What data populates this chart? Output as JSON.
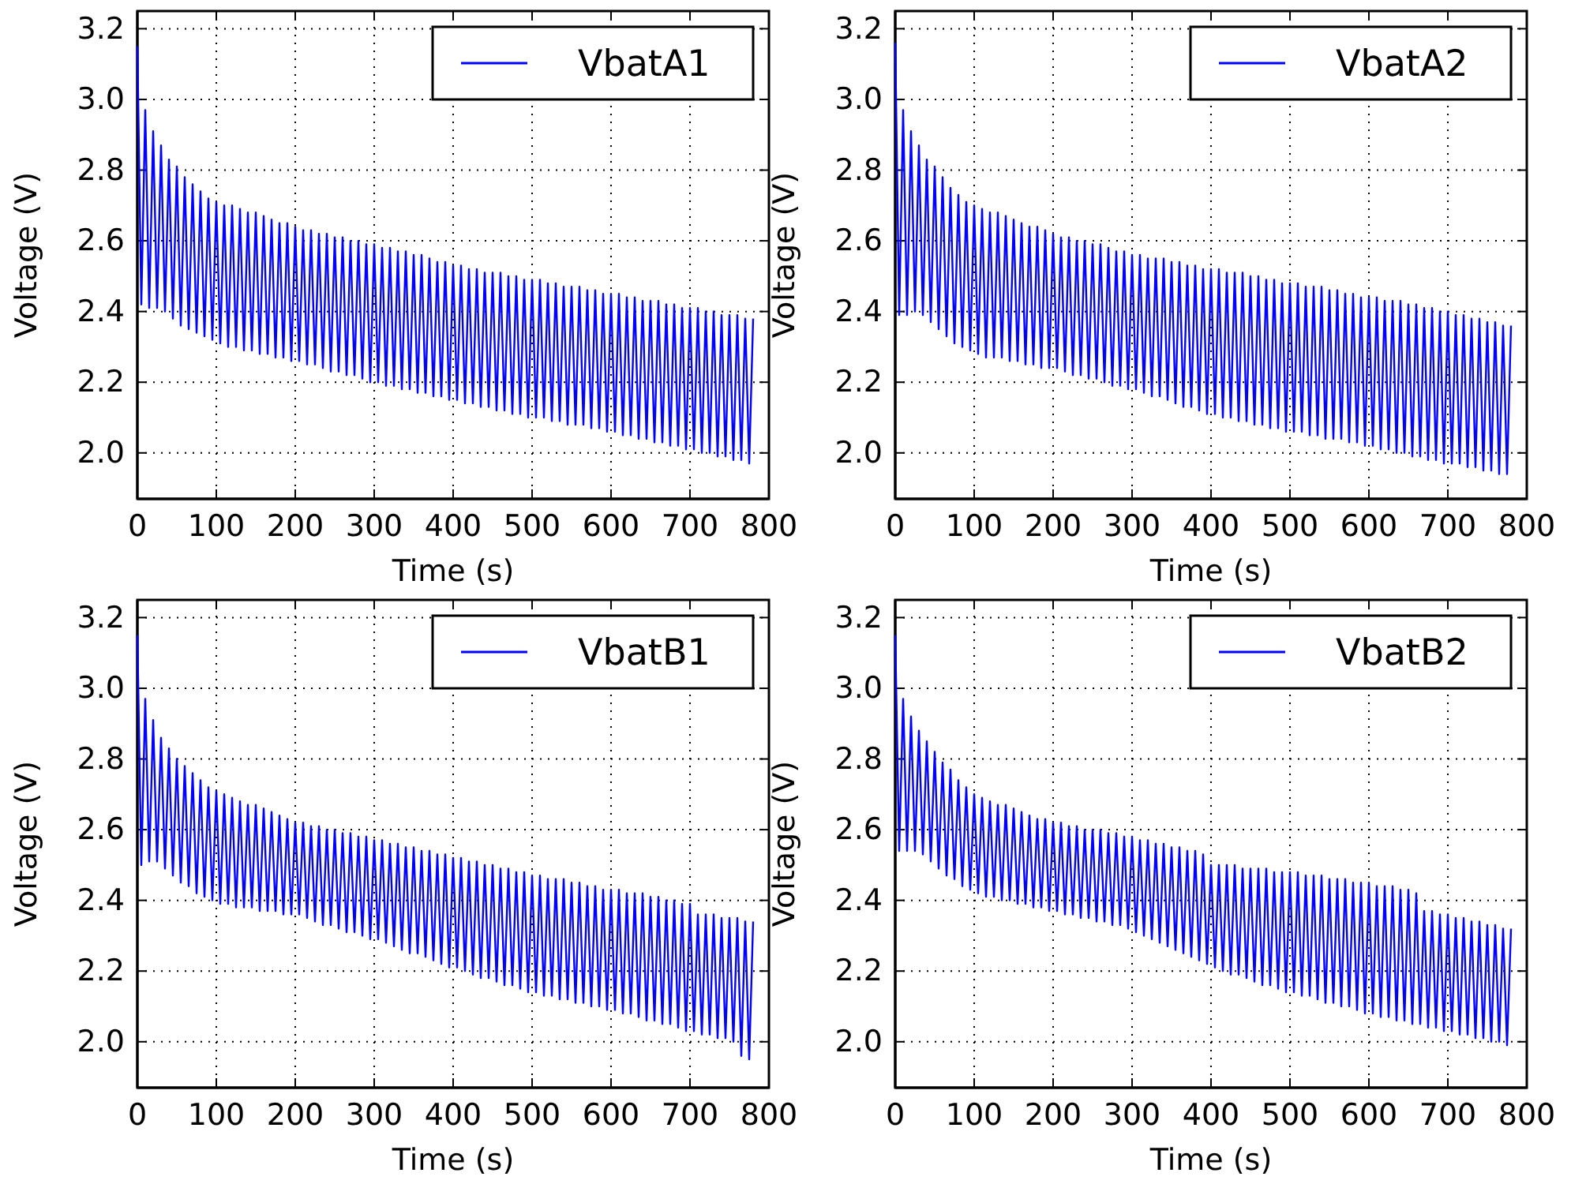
{
  "chart_data": [
    {
      "type": "line",
      "xlabel": "Time (s)",
      "ylabel": "Voltage (V)",
      "xlim": [
        0,
        800
      ],
      "ylim": [
        1.87,
        3.25
      ],
      "xticks": [
        0,
        100,
        200,
        300,
        400,
        500,
        600,
        700,
        800
      ],
      "yticks": [
        {
          "value": 2.0,
          "label": "2.0"
        },
        {
          "value": 2.2,
          "label": "2.2"
        },
        {
          "value": 2.4,
          "label": "2.4"
        },
        {
          "value": 2.6,
          "label": "2.6"
        },
        {
          "value": 2.8,
          "label": "2.8"
        },
        {
          "value": 3.0,
          "label": "3.0"
        },
        {
          "value": 3.2,
          "label": "3.2"
        }
      ],
      "grid": true,
      "legend": "top right",
      "line_style": "solid",
      "marker": "none",
      "x": [
        0,
        5,
        10,
        15,
        20,
        25,
        30,
        35,
        40,
        45,
        50,
        55,
        60,
        65,
        70,
        75,
        80,
        85,
        90,
        95,
        100,
        105,
        110,
        115,
        120,
        125,
        130,
        135,
        140,
        145,
        150,
        155,
        160,
        165,
        170,
        175,
        180,
        185,
        190,
        195,
        200,
        205,
        210,
        215,
        220,
        225,
        230,
        235,
        240,
        245,
        250,
        255,
        260,
        265,
        270,
        275,
        280,
        285,
        290,
        295,
        300,
        305,
        310,
        315,
        320,
        325,
        330,
        335,
        340,
        345,
        350,
        355,
        360,
        365,
        370,
        375,
        380,
        385,
        390,
        395,
        400,
        405,
        410,
        415,
        420,
        425,
        430,
        435,
        440,
        445,
        450,
        455,
        460,
        465,
        470,
        475,
        480,
        485,
        490,
        495,
        500,
        505,
        510,
        515,
        520,
        525,
        530,
        535,
        540,
        545,
        550,
        555,
        560,
        565,
        570,
        575,
        580,
        585,
        590,
        595,
        600,
        605,
        610,
        615,
        620,
        625,
        630,
        635,
        640,
        645,
        650,
        655,
        660,
        665,
        670,
        675,
        680,
        685,
        690,
        695,
        700,
        705,
        710,
        715,
        720,
        725,
        730,
        735,
        740,
        745,
        750,
        755,
        760,
        765,
        770,
        775,
        780
      ],
      "series": [
        {
          "name": "VbatA1",
          "color": "#0000ff",
          "values": [
            3.15,
            2.42,
            2.97,
            2.41,
            2.91,
            2.41,
            2.87,
            2.4,
            2.83,
            2.38,
            2.81,
            2.36,
            2.78,
            2.35,
            2.76,
            2.34,
            2.74,
            2.33,
            2.72,
            2.32,
            2.71,
            2.31,
            2.7,
            2.3,
            2.7,
            2.3,
            2.69,
            2.29,
            2.68,
            2.29,
            2.68,
            2.28,
            2.67,
            2.28,
            2.66,
            2.27,
            2.65,
            2.27,
            2.65,
            2.26,
            2.64,
            2.26,
            2.63,
            2.25,
            2.63,
            2.25,
            2.62,
            2.24,
            2.62,
            2.23,
            2.61,
            2.23,
            2.61,
            2.22,
            2.6,
            2.22,
            2.6,
            2.21,
            2.59,
            2.2,
            2.59,
            2.2,
            2.58,
            2.19,
            2.58,
            2.19,
            2.57,
            2.18,
            2.57,
            2.18,
            2.56,
            2.17,
            2.56,
            2.17,
            2.55,
            2.16,
            2.54,
            2.16,
            2.54,
            2.15,
            2.53,
            2.15,
            2.53,
            2.14,
            2.52,
            2.14,
            2.52,
            2.13,
            2.51,
            2.13,
            2.51,
            2.12,
            2.51,
            2.12,
            2.5,
            2.11,
            2.5,
            2.11,
            2.49,
            2.1,
            2.49,
            2.1,
            2.49,
            2.1,
            2.48,
            2.09,
            2.48,
            2.09,
            2.47,
            2.08,
            2.47,
            2.08,
            2.47,
            2.08,
            2.46,
            2.07,
            2.46,
            2.07,
            2.45,
            2.06,
            2.45,
            2.06,
            2.45,
            2.05,
            2.44,
            2.05,
            2.44,
            2.04,
            2.43,
            2.04,
            2.43,
            2.03,
            2.43,
            2.03,
            2.42,
            2.02,
            2.42,
            2.02,
            2.41,
            2.01,
            2.41,
            2.01,
            2.41,
            2.0,
            2.4,
            2.0,
            2.4,
            1.99,
            2.39,
            1.99,
            2.39,
            1.98,
            2.39,
            1.98,
            2.38,
            1.97,
            2.38
          ]
        }
      ]
    },
    {
      "type": "line",
      "xlabel": "Time (s)",
      "ylabel": "Voltage (V)",
      "xlim": [
        0,
        800
      ],
      "ylim": [
        1.87,
        3.25
      ],
      "xticks": [
        0,
        100,
        200,
        300,
        400,
        500,
        600,
        700,
        800
      ],
      "yticks": [
        {
          "value": 2.0,
          "label": "2.0"
        },
        {
          "value": 2.2,
          "label": "2.2"
        },
        {
          "value": 2.4,
          "label": "2.4"
        },
        {
          "value": 2.6,
          "label": "2.6"
        },
        {
          "value": 2.8,
          "label": "2.8"
        },
        {
          "value": 3.0,
          "label": "3.0"
        },
        {
          "value": 3.2,
          "label": "3.2"
        }
      ],
      "grid": true,
      "legend": "top right",
      "line_style": "solid",
      "marker": "none",
      "x": [
        0,
        5,
        10,
        15,
        20,
        25,
        30,
        35,
        40,
        45,
        50,
        55,
        60,
        65,
        70,
        75,
        80,
        85,
        90,
        95,
        100,
        105,
        110,
        115,
        120,
        125,
        130,
        135,
        140,
        145,
        150,
        155,
        160,
        165,
        170,
        175,
        180,
        185,
        190,
        195,
        200,
        205,
        210,
        215,
        220,
        225,
        230,
        235,
        240,
        245,
        250,
        255,
        260,
        265,
        270,
        275,
        280,
        285,
        290,
        295,
        300,
        305,
        310,
        315,
        320,
        325,
        330,
        335,
        340,
        345,
        350,
        355,
        360,
        365,
        370,
        375,
        380,
        385,
        390,
        395,
        400,
        405,
        410,
        415,
        420,
        425,
        430,
        435,
        440,
        445,
        450,
        455,
        460,
        465,
        470,
        475,
        480,
        485,
        490,
        495,
        500,
        505,
        510,
        515,
        520,
        525,
        530,
        535,
        540,
        545,
        550,
        555,
        560,
        565,
        570,
        575,
        580,
        585,
        590,
        595,
        600,
        605,
        610,
        615,
        620,
        625,
        630,
        635,
        640,
        645,
        650,
        655,
        660,
        665,
        670,
        675,
        680,
        685,
        690,
        695,
        700,
        705,
        710,
        715,
        720,
        725,
        730,
        735,
        740,
        745,
        750,
        755,
        760,
        765,
        770,
        775,
        780
      ],
      "series": [
        {
          "name": "VbatA2",
          "color": "#0000ff",
          "values": [
            3.16,
            2.39,
            2.97,
            2.39,
            2.91,
            2.4,
            2.87,
            2.39,
            2.83,
            2.37,
            2.81,
            2.35,
            2.78,
            2.33,
            2.75,
            2.31,
            2.73,
            2.3,
            2.71,
            2.29,
            2.7,
            2.28,
            2.69,
            2.27,
            2.68,
            2.27,
            2.68,
            2.27,
            2.67,
            2.26,
            2.66,
            2.26,
            2.65,
            2.25,
            2.64,
            2.25,
            2.64,
            2.24,
            2.63,
            2.24,
            2.62,
            2.24,
            2.61,
            2.23,
            2.61,
            2.22,
            2.6,
            2.22,
            2.6,
            2.21,
            2.59,
            2.21,
            2.59,
            2.2,
            2.58,
            2.19,
            2.57,
            2.19,
            2.57,
            2.18,
            2.56,
            2.18,
            2.56,
            2.17,
            2.55,
            2.16,
            2.55,
            2.16,
            2.55,
            2.15,
            2.54,
            2.14,
            2.54,
            2.13,
            2.53,
            2.13,
            2.53,
            2.12,
            2.52,
            2.11,
            2.52,
            2.11,
            2.52,
            2.1,
            2.51,
            2.1,
            2.51,
            2.09,
            2.51,
            2.09,
            2.5,
            2.08,
            2.5,
            2.08,
            2.49,
            2.07,
            2.49,
            2.07,
            2.48,
            2.06,
            2.48,
            2.06,
            2.48,
            2.06,
            2.47,
            2.05,
            2.47,
            2.05,
            2.47,
            2.04,
            2.46,
            2.04,
            2.46,
            2.04,
            2.45,
            2.03,
            2.45,
            2.03,
            2.44,
            2.02,
            2.44,
            2.02,
            2.44,
            2.01,
            2.43,
            2.01,
            2.43,
            2.0,
            2.43,
            2.0,
            2.42,
            1.99,
            2.42,
            1.99,
            2.41,
            1.98,
            2.41,
            1.98,
            2.4,
            1.97,
            2.4,
            1.97,
            2.39,
            1.97,
            2.39,
            1.96,
            2.38,
            1.96,
            2.38,
            1.95,
            2.37,
            1.95,
            2.37,
            1.94,
            2.36,
            1.94,
            2.36
          ]
        }
      ]
    },
    {
      "type": "line",
      "xlabel": "Time (s)",
      "ylabel": "Voltage (V)",
      "xlim": [
        0,
        800
      ],
      "ylim": [
        1.87,
        3.25
      ],
      "xticks": [
        0,
        100,
        200,
        300,
        400,
        500,
        600,
        700,
        800
      ],
      "yticks": [
        {
          "value": 2.0,
          "label": "2.0"
        },
        {
          "value": 2.2,
          "label": "2.2"
        },
        {
          "value": 2.4,
          "label": "2.4"
        },
        {
          "value": 2.6,
          "label": "2.6"
        },
        {
          "value": 2.8,
          "label": "2.8"
        },
        {
          "value": 3.0,
          "label": "3.0"
        },
        {
          "value": 3.2,
          "label": "3.2"
        }
      ],
      "grid": true,
      "legend": "top right",
      "line_style": "solid",
      "marker": "none",
      "x": [
        0,
        5,
        10,
        15,
        20,
        25,
        30,
        35,
        40,
        45,
        50,
        55,
        60,
        65,
        70,
        75,
        80,
        85,
        90,
        95,
        100,
        105,
        110,
        115,
        120,
        125,
        130,
        135,
        140,
        145,
        150,
        155,
        160,
        165,
        170,
        175,
        180,
        185,
        190,
        195,
        200,
        205,
        210,
        215,
        220,
        225,
        230,
        235,
        240,
        245,
        250,
        255,
        260,
        265,
        270,
        275,
        280,
        285,
        290,
        295,
        300,
        305,
        310,
        315,
        320,
        325,
        330,
        335,
        340,
        345,
        350,
        355,
        360,
        365,
        370,
        375,
        380,
        385,
        390,
        395,
        400,
        405,
        410,
        415,
        420,
        425,
        430,
        435,
        440,
        445,
        450,
        455,
        460,
        465,
        470,
        475,
        480,
        485,
        490,
        495,
        500,
        505,
        510,
        515,
        520,
        525,
        530,
        535,
        540,
        545,
        550,
        555,
        560,
        565,
        570,
        575,
        580,
        585,
        590,
        595,
        600,
        605,
        610,
        615,
        620,
        625,
        630,
        635,
        640,
        645,
        650,
        655,
        660,
        665,
        670,
        675,
        680,
        685,
        690,
        695,
        700,
        705,
        710,
        715,
        720,
        725,
        730,
        735,
        740,
        745,
        750,
        755,
        760,
        765,
        770,
        775,
        780
      ],
      "series": [
        {
          "name": "VbatB1",
          "color": "#0000ff",
          "values": [
            3.15,
            2.5,
            2.97,
            2.51,
            2.91,
            2.51,
            2.86,
            2.49,
            2.83,
            2.47,
            2.8,
            2.45,
            2.78,
            2.44,
            2.76,
            2.42,
            2.74,
            2.41,
            2.72,
            2.4,
            2.71,
            2.39,
            2.7,
            2.39,
            2.69,
            2.38,
            2.68,
            2.38,
            2.67,
            2.38,
            2.67,
            2.37,
            2.66,
            2.37,
            2.65,
            2.37,
            2.64,
            2.36,
            2.63,
            2.36,
            2.62,
            2.36,
            2.62,
            2.35,
            2.61,
            2.34,
            2.61,
            2.33,
            2.6,
            2.33,
            2.6,
            2.32,
            2.59,
            2.31,
            2.59,
            2.31,
            2.58,
            2.3,
            2.58,
            2.29,
            2.57,
            2.29,
            2.57,
            2.28,
            2.56,
            2.27,
            2.56,
            2.26,
            2.55,
            2.25,
            2.55,
            2.25,
            2.54,
            2.24,
            2.54,
            2.23,
            2.53,
            2.22,
            2.53,
            2.21,
            2.52,
            2.21,
            2.52,
            2.2,
            2.51,
            2.19,
            2.51,
            2.18,
            2.5,
            2.18,
            2.5,
            2.17,
            2.49,
            2.16,
            2.49,
            2.16,
            2.48,
            2.15,
            2.48,
            2.14,
            2.47,
            2.14,
            2.47,
            2.13,
            2.46,
            2.13,
            2.46,
            2.12,
            2.46,
            2.12,
            2.45,
            2.11,
            2.45,
            2.11,
            2.44,
            2.1,
            2.44,
            2.1,
            2.43,
            2.09,
            2.43,
            2.09,
            2.43,
            2.08,
            2.42,
            2.08,
            2.42,
            2.07,
            2.42,
            2.06,
            2.41,
            2.06,
            2.41,
            2.05,
            2.4,
            2.05,
            2.4,
            2.04,
            2.39,
            2.03,
            2.39,
            2.03,
            2.36,
            2.02,
            2.36,
            2.02,
            2.36,
            2.01,
            2.35,
            2.01,
            2.35,
            2.0,
            2.35,
            1.96,
            2.34,
            1.95,
            2.34
          ]
        }
      ]
    },
    {
      "type": "line",
      "xlabel": "Time (s)",
      "ylabel": "Voltage (V)",
      "xlim": [
        0,
        800
      ],
      "ylim": [
        1.87,
        3.25
      ],
      "xticks": [
        0,
        100,
        200,
        300,
        400,
        500,
        600,
        700,
        800
      ],
      "yticks": [
        {
          "value": 2.0,
          "label": "2.0"
        },
        {
          "value": 2.2,
          "label": "2.2"
        },
        {
          "value": 2.4,
          "label": "2.4"
        },
        {
          "value": 2.6,
          "label": "2.6"
        },
        {
          "value": 2.8,
          "label": "2.8"
        },
        {
          "value": 3.0,
          "label": "3.0"
        },
        {
          "value": 3.2,
          "label": "3.2"
        }
      ],
      "grid": true,
      "legend": "top right",
      "line_style": "solid",
      "marker": "none",
      "x": [
        0,
        5,
        10,
        15,
        20,
        25,
        30,
        35,
        40,
        45,
        50,
        55,
        60,
        65,
        70,
        75,
        80,
        85,
        90,
        95,
        100,
        105,
        110,
        115,
        120,
        125,
        130,
        135,
        140,
        145,
        150,
        155,
        160,
        165,
        170,
        175,
        180,
        185,
        190,
        195,
        200,
        205,
        210,
        215,
        220,
        225,
        230,
        235,
        240,
        245,
        250,
        255,
        260,
        265,
        270,
        275,
        280,
        285,
        290,
        295,
        300,
        305,
        310,
        315,
        320,
        325,
        330,
        335,
        340,
        345,
        350,
        355,
        360,
        365,
        370,
        375,
        380,
        385,
        390,
        395,
        400,
        405,
        410,
        415,
        420,
        425,
        430,
        435,
        440,
        445,
        450,
        455,
        460,
        465,
        470,
        475,
        480,
        485,
        490,
        495,
        500,
        505,
        510,
        515,
        520,
        525,
        530,
        535,
        540,
        545,
        550,
        555,
        560,
        565,
        570,
        575,
        580,
        585,
        590,
        595,
        600,
        605,
        610,
        615,
        620,
        625,
        630,
        635,
        640,
        645,
        650,
        655,
        660,
        665,
        670,
        675,
        680,
        685,
        690,
        695,
        700,
        705,
        710,
        715,
        720,
        725,
        730,
        735,
        740,
        745,
        750,
        755,
        760,
        765,
        770,
        775,
        780
      ],
      "series": [
        {
          "name": "VbatB2",
          "color": "#0000ff",
          "values": [
            3.15,
            2.54,
            2.97,
            2.54,
            2.92,
            2.54,
            2.88,
            2.53,
            2.85,
            2.51,
            2.82,
            2.49,
            2.79,
            2.47,
            2.77,
            2.46,
            2.74,
            2.44,
            2.72,
            2.43,
            2.7,
            2.42,
            2.69,
            2.41,
            2.68,
            2.41,
            2.67,
            2.4,
            2.67,
            2.4,
            2.66,
            2.39,
            2.65,
            2.39,
            2.64,
            2.38,
            2.63,
            2.38,
            2.63,
            2.37,
            2.62,
            2.37,
            2.62,
            2.36,
            2.61,
            2.36,
            2.61,
            2.35,
            2.6,
            2.35,
            2.6,
            2.34,
            2.6,
            2.34,
            2.59,
            2.33,
            2.59,
            2.33,
            2.58,
            2.32,
            2.58,
            2.31,
            2.57,
            2.3,
            2.57,
            2.29,
            2.56,
            2.28,
            2.56,
            2.27,
            2.55,
            2.26,
            2.55,
            2.25,
            2.54,
            2.24,
            2.54,
            2.23,
            2.53,
            2.22,
            2.5,
            2.21,
            2.5,
            2.2,
            2.5,
            2.19,
            2.5,
            2.19,
            2.49,
            2.18,
            2.49,
            2.17,
            2.49,
            2.16,
            2.49,
            2.16,
            2.48,
            2.15,
            2.48,
            2.14,
            2.48,
            2.14,
            2.48,
            2.13,
            2.47,
            2.13,
            2.47,
            2.12,
            2.47,
            2.11,
            2.46,
            2.11,
            2.46,
            2.1,
            2.46,
            2.1,
            2.45,
            2.09,
            2.45,
            2.08,
            2.45,
            2.08,
            2.44,
            2.07,
            2.44,
            2.07,
            2.44,
            2.06,
            2.43,
            2.06,
            2.43,
            2.05,
            2.42,
            2.05,
            2.37,
            2.04,
            2.37,
            2.04,
            2.36,
            2.03,
            2.36,
            2.03,
            2.35,
            2.02,
            2.35,
            2.02,
            2.34,
            2.01,
            2.34,
            2.01,
            2.33,
            2.0,
            2.33,
            2.0,
            2.32,
            1.99,
            2.32
          ]
        }
      ]
    }
  ]
}
